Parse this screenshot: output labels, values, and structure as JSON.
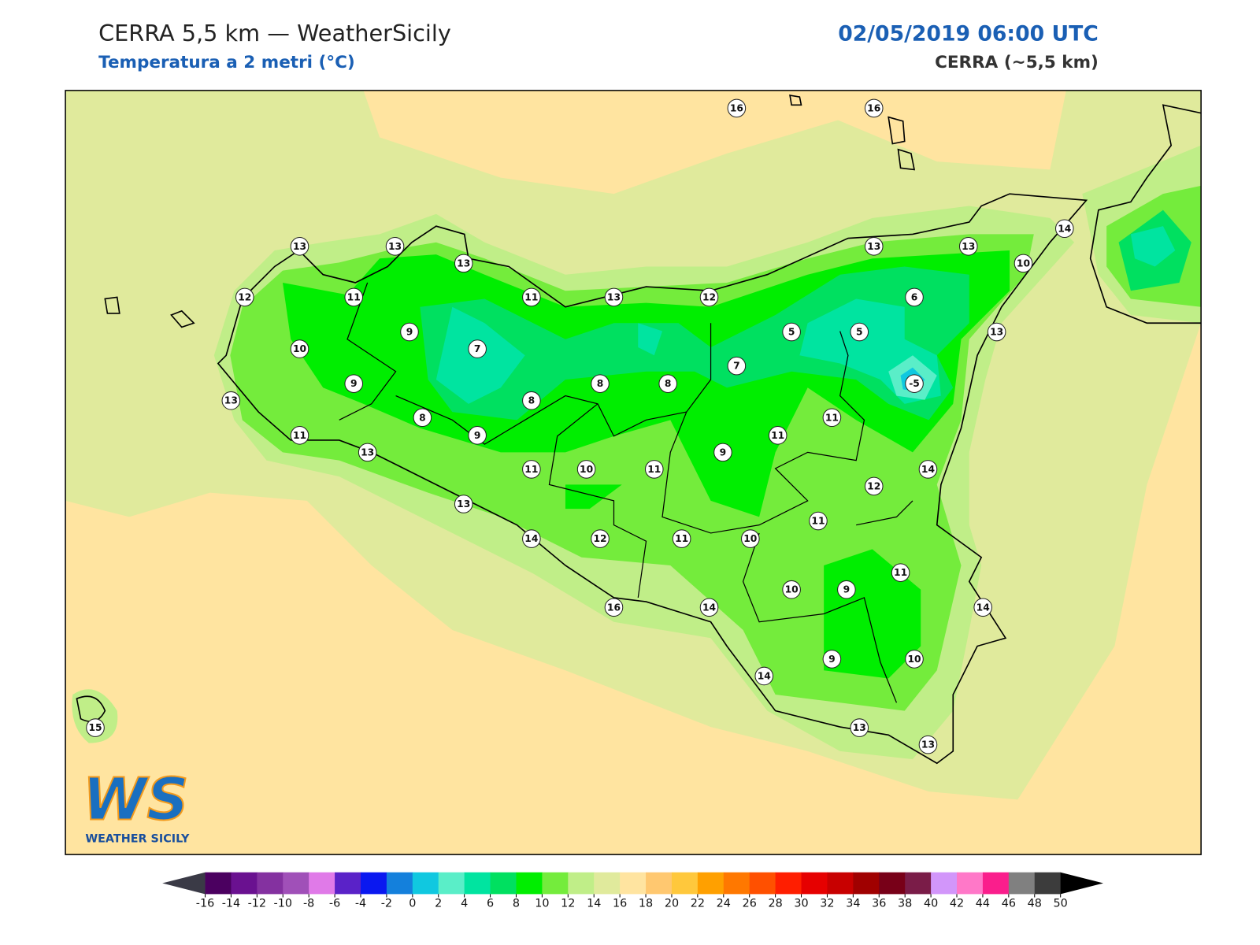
{
  "header": {
    "title": "CERRA 5,5 km — WeatherSicily",
    "subtitle": "Temperatura a 2 metri (°C)",
    "datetime": "02/05/2019 06:00 UTC",
    "source": "CERRA (~5,5 km)"
  },
  "stations": [
    16,
    16,
    13,
    13,
    13,
    13,
    13,
    14,
    10,
    12,
    11,
    11,
    13,
    12,
    6,
    9,
    5,
    5,
    13,
    10,
    7,
    7,
    9,
    8,
    8,
    -5,
    13,
    8,
    8,
    11,
    11,
    9,
    11,
    13,
    9,
    11,
    10,
    11,
    14,
    12,
    13,
    11,
    14,
    12,
    11,
    10,
    11,
    10,
    9,
    16,
    14,
    14,
    9,
    10,
    14,
    13,
    13,
    15
  ],
  "colorbar": {
    "ticks": [
      -16,
      -14,
      -12,
      -10,
      -8,
      -6,
      -4,
      -2,
      0,
      2,
      4,
      6,
      8,
      10,
      12,
      14,
      16,
      18,
      20,
      22,
      24,
      26,
      28,
      30,
      32,
      34,
      36,
      38,
      40,
      42,
      44,
      46,
      48,
      50
    ],
    "colors": [
      "#4b0060",
      "#6a1190",
      "#8431a0",
      "#a050b8",
      "#e07ae8",
      "#5a22c8",
      "#0a18f0",
      "#1480dc",
      "#10c8e0",
      "#5aeec8",
      "#00e4a0",
      "#00e060",
      "#00ee00",
      "#74ec3c",
      "#c0ee88",
      "#e0ea9c",
      "#ffe4a0",
      "#ffc870",
      "#ffc83c",
      "#ffa000",
      "#ff7800",
      "#ff5000",
      "#ff1e00",
      "#e60000",
      "#c80000",
      "#a00000",
      "#780018",
      "#7a1c48",
      "#d296fa",
      "#ff78c8",
      "#fa1e8c",
      "#808080",
      "#3c3c3c"
    ],
    "under_color": "#3a3a46",
    "over_color": "#000000"
  },
  "logo": {
    "letters": "WS",
    "name": "WEATHER SICILY"
  }
}
